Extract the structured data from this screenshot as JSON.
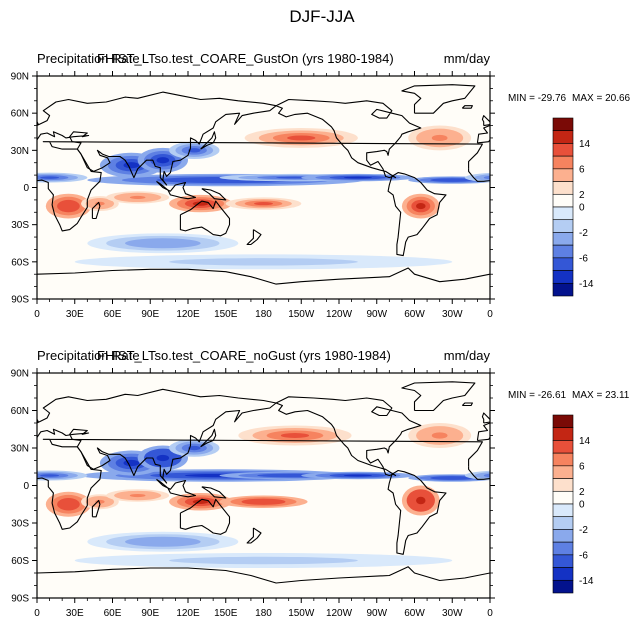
{
  "figure": {
    "title": "DJF-JJA"
  },
  "x_tick_labels": [
    "0",
    "30E",
    "60E",
    "90E",
    "120E",
    "150E",
    "180",
    "150W",
    "120W",
    "90W",
    "60W",
    "30W",
    "0"
  ],
  "y_tick_labels": [
    "90N",
    "60N",
    "30N",
    "0",
    "30S",
    "60S",
    "90S"
  ],
  "colorbar": {
    "labels": [
      "14",
      "6",
      "2",
      "0",
      "-2",
      "-6",
      "-14"
    ],
    "colors": [
      "#7a0a06",
      "#c32614",
      "#e8503a",
      "#f6835f",
      "#fcb08f",
      "#fde0cc",
      "#fffdf8",
      "#d9e9fb",
      "#b4cdf3",
      "#8aa9ec",
      "#5e80e3",
      "#3457d6",
      "#1432c4",
      "#03128d"
    ]
  },
  "panels": [
    {
      "variable_label": "Precipitation Rate",
      "case_label": "FHIST_LTso.test_COARE_GustOn (yrs 1980-1984)",
      "units_label": "mm/day",
      "min_label": "MIN = -29.76",
      "max_label": "MAX =  20.66"
    },
    {
      "variable_label": "Precipitation Rate",
      "case_label": "FHIST_LTso.test_COARE_noGust (yrs 1980-1984)",
      "units_label": "mm/day",
      "min_label": "MIN = -26.61",
      "max_label": "MAX =  23.11"
    }
  ],
  "chart_data": {
    "type": "heatmap",
    "title": "DJF-JJA",
    "units": "mm/day",
    "projection": "cylindrical equidistant, 0 to 360 longitude, 90S to 90N",
    "xlim": [
      0,
      360
    ],
    "ylim": [
      -90,
      90
    ],
    "contour_levels": [
      -14,
      -10,
      -6,
      -4,
      -2,
      -1,
      0,
      1,
      2,
      4,
      6,
      10,
      14
    ],
    "panels": [
      {
        "case": "FHIST_LTso.test_COARE_GustOn",
        "years": "1980-1984",
        "min": -29.76,
        "max": 20.66,
        "anomalies": [
          {
            "lon": 150,
            "lat": 6,
            "value": -10,
            "rlon": 110,
            "rlat": 5
          },
          {
            "lon": 205,
            "lat": 8,
            "value": -8,
            "rlon": 60,
            "rlat": 3
          },
          {
            "lon": 255,
            "lat": 8,
            "value": -12,
            "rlon": 45,
            "rlat": 3
          },
          {
            "lon": 330,
            "lat": 6,
            "value": -9,
            "rlon": 35,
            "rlat": 3
          },
          {
            "lon": 75,
            "lat": 18,
            "value": -12,
            "rlon": 25,
            "rlat": 10
          },
          {
            "lon": 100,
            "lat": 22,
            "value": -12,
            "rlon": 20,
            "rlat": 10
          },
          {
            "lon": 125,
            "lat": 30,
            "value": -7,
            "rlon": 20,
            "rlat": 7
          },
          {
            "lon": 10,
            "lat": 8,
            "value": -8,
            "rlon": 30,
            "rlat": 4
          },
          {
            "lon": 210,
            "lat": 40,
            "value": 6,
            "rlon": 45,
            "rlat": 8
          },
          {
            "lon": 320,
            "lat": 40,
            "value": 5,
            "rlon": 25,
            "rlat": 10
          },
          {
            "lon": 25,
            "lat": -15,
            "value": 8,
            "rlon": 18,
            "rlat": 10
          },
          {
            "lon": 50,
            "lat": -13,
            "value": 4,
            "rlon": 15,
            "rlat": 6
          },
          {
            "lon": 305,
            "lat": -15,
            "value": 10,
            "rlon": 15,
            "rlat": 10
          },
          {
            "lon": 130,
            "lat": -13,
            "value": 10,
            "rlon": 25,
            "rlat": 7
          },
          {
            "lon": 180,
            "lat": -13,
            "value": 7,
            "rlon": 30,
            "rlat": 5
          },
          {
            "lon": 80,
            "lat": -8,
            "value": 4,
            "rlon": 25,
            "rlat": 5
          },
          {
            "lon": 100,
            "lat": -45,
            "value": -4,
            "rlon": 60,
            "rlat": 8
          },
          {
            "lon": 180,
            "lat": -60,
            "value": -2,
            "rlon": 150,
            "rlat": 6
          }
        ]
      },
      {
        "case": "FHIST_LTso.test_COARE_noGust",
        "years": "1980-1984",
        "min": -26.61,
        "max": 23.11,
        "anomalies": [
          {
            "lon": 145,
            "lat": 8,
            "value": -11,
            "rlon": 110,
            "rlat": 5
          },
          {
            "lon": 205,
            "lat": 8,
            "value": -9,
            "rlon": 60,
            "rlat": 3
          },
          {
            "lon": 255,
            "lat": 8,
            "value": -12,
            "rlon": 45,
            "rlat": 3
          },
          {
            "lon": 330,
            "lat": 6,
            "value": -9,
            "rlon": 35,
            "rlat": 3
          },
          {
            "lon": 75,
            "lat": 18,
            "value": -12,
            "rlon": 25,
            "rlat": 10
          },
          {
            "lon": 100,
            "lat": 22,
            "value": -13,
            "rlon": 20,
            "rlat": 10
          },
          {
            "lon": 125,
            "lat": 30,
            "value": -8,
            "rlon": 20,
            "rlat": 7
          },
          {
            "lon": 10,
            "lat": 8,
            "value": -8,
            "rlon": 30,
            "rlat": 4
          },
          {
            "lon": 205,
            "lat": 40,
            "value": 7,
            "rlon": 45,
            "rlat": 8
          },
          {
            "lon": 320,
            "lat": 40,
            "value": 5,
            "rlon": 25,
            "rlat": 10
          },
          {
            "lon": 25,
            "lat": -15,
            "value": 9,
            "rlon": 18,
            "rlat": 10
          },
          {
            "lon": 50,
            "lat": -13,
            "value": 5,
            "rlon": 15,
            "rlat": 6
          },
          {
            "lon": 305,
            "lat": -12,
            "value": 12,
            "rlon": 15,
            "rlat": 12
          },
          {
            "lon": 130,
            "lat": -13,
            "value": 11,
            "rlon": 25,
            "rlat": 7
          },
          {
            "lon": 180,
            "lat": -13,
            "value": 9,
            "rlon": 35,
            "rlat": 5
          },
          {
            "lon": 80,
            "lat": -8,
            "value": 4,
            "rlon": 25,
            "rlat": 5
          },
          {
            "lon": 100,
            "lat": -45,
            "value": -3,
            "rlon": 60,
            "rlat": 8
          },
          {
            "lon": 180,
            "lat": -60,
            "value": -2,
            "rlon": 150,
            "rlat": 6
          }
        ]
      }
    ]
  }
}
